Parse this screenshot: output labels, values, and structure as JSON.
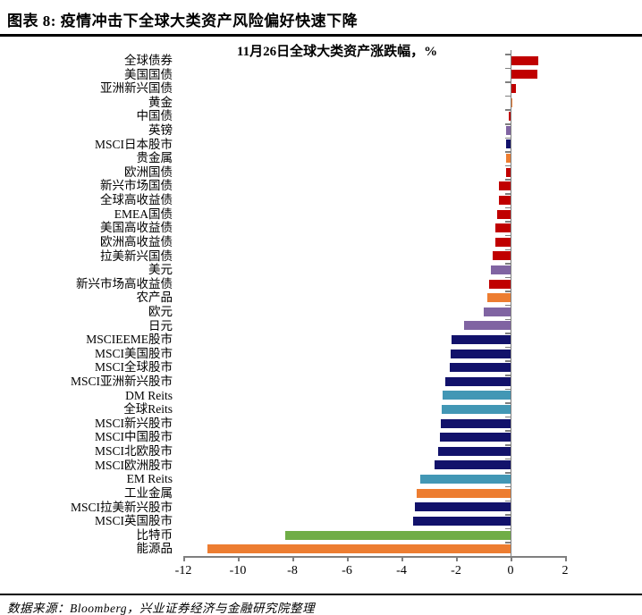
{
  "header": {
    "title": "图表 8: 疫情冲击下全球大类资产风险偏好快速下降"
  },
  "chart_data": {
    "type": "bar",
    "orientation": "horizontal",
    "title": "11月26日全球大类资产涨跌幅，%",
    "xlabel": "",
    "ylabel": "",
    "xlim": [
      -12,
      2
    ],
    "x_ticks": [
      -12,
      -10,
      -8,
      -6,
      -4,
      -2,
      0,
      2
    ],
    "grid": false,
    "legend": "none",
    "unit": "%",
    "colors": {
      "bond_red": "#C00000",
      "commodity_orange": "#ED7D31",
      "currency_purple": "#8064A2",
      "equity_navy": "#12126B",
      "reits_teal": "#4297B5",
      "bitcoin_green": "#70AD47"
    },
    "items": [
      {
        "label": "全球债券",
        "value": 1.0,
        "color": "bond_red"
      },
      {
        "label": "美国国债",
        "value": 0.97,
        "color": "bond_red"
      },
      {
        "label": "亚洲新兴国债",
        "value": 0.2,
        "color": "bond_red"
      },
      {
        "label": "黄金",
        "value": 0.05,
        "color": "commodity_orange"
      },
      {
        "label": "中国债",
        "value": -0.05,
        "color": "bond_red"
      },
      {
        "label": "英镑",
        "value": -0.15,
        "color": "currency_purple"
      },
      {
        "label": "MSCI日本股市",
        "value": -0.16,
        "color": "equity_navy"
      },
      {
        "label": "贵金属",
        "value": -0.18,
        "color": "commodity_orange"
      },
      {
        "label": "欧洲国债",
        "value": -0.18,
        "color": "bond_red"
      },
      {
        "label": "新兴市场国债",
        "value": -0.42,
        "color": "bond_red"
      },
      {
        "label": "全球高收益债",
        "value": -0.43,
        "color": "bond_red"
      },
      {
        "label": "EMEA国债",
        "value": -0.5,
        "color": "bond_red"
      },
      {
        "label": "美国高收益债",
        "value": -0.55,
        "color": "bond_red"
      },
      {
        "label": "欧洲高收益债",
        "value": -0.56,
        "color": "bond_red"
      },
      {
        "label": "拉美新兴国债",
        "value": -0.64,
        "color": "bond_red"
      },
      {
        "label": "美元",
        "value": -0.71,
        "color": "currency_purple"
      },
      {
        "label": "新兴市场高收益债",
        "value": -0.8,
        "color": "bond_red"
      },
      {
        "label": "农产品",
        "value": -0.84,
        "color": "commodity_orange"
      },
      {
        "label": "欧元",
        "value": -1.0,
        "color": "currency_purple"
      },
      {
        "label": "日元",
        "value": -1.7,
        "color": "currency_purple"
      },
      {
        "label": "MSCIEEME股市",
        "value": -2.15,
        "color": "equity_navy"
      },
      {
        "label": "MSCI美国股市",
        "value": -2.2,
        "color": "equity_navy"
      },
      {
        "label": "MSCI全球股市",
        "value": -2.22,
        "color": "equity_navy"
      },
      {
        "label": "MSCI亚洲新兴股市",
        "value": -2.38,
        "color": "equity_navy"
      },
      {
        "label": "DM Reits",
        "value": -2.48,
        "color": "reits_teal"
      },
      {
        "label": "全球Reits",
        "value": -2.52,
        "color": "reits_teal"
      },
      {
        "label": "MSCI新兴股市",
        "value": -2.55,
        "color": "equity_navy"
      },
      {
        "label": "MSCI中国股市",
        "value": -2.58,
        "color": "equity_navy"
      },
      {
        "label": "MSCI北欧股市",
        "value": -2.66,
        "color": "equity_navy"
      },
      {
        "label": "MSCI欧洲股市",
        "value": -2.8,
        "color": "equity_navy"
      },
      {
        "label": "EM Reits",
        "value": -3.3,
        "color": "reits_teal"
      },
      {
        "label": "工业金属",
        "value": -3.45,
        "color": "commodity_orange"
      },
      {
        "label": "MSCI拉美新兴股市",
        "value": -3.5,
        "color": "equity_navy"
      },
      {
        "label": "MSCI英国股市",
        "value": -3.57,
        "color": "equity_navy"
      },
      {
        "label": "比特币",
        "value": -8.25,
        "color": "bitcoin_green"
      },
      {
        "label": "能源品",
        "value": -11.1,
        "color": "commodity_orange"
      }
    ]
  },
  "footer": {
    "source": "数据来源：Bloomberg，兴业证券经济与金融研究院整理"
  }
}
